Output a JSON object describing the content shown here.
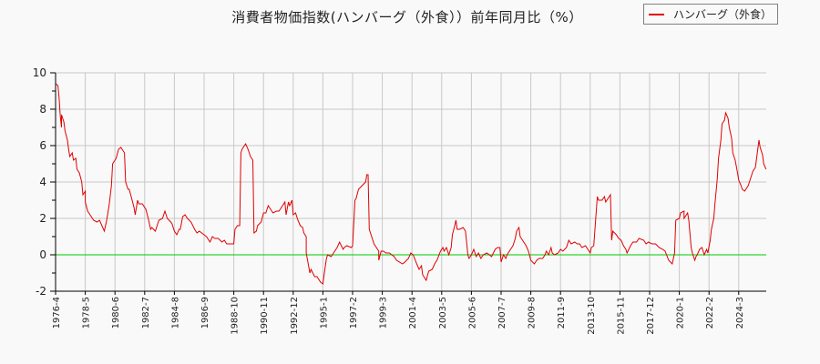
{
  "chart_data": {
    "type": "line",
    "title": "消費者物価指数(ハンバーグ（外食））前年同月比（%）",
    "xlabel": "",
    "ylabel": "",
    "ylim": [
      -2,
      10
    ],
    "yticks": [
      -2,
      0,
      2,
      4,
      6,
      8,
      10
    ],
    "grid": true,
    "legend_position": "top-right",
    "x_start": "1976-4",
    "x_step": "month",
    "x_tick_labels": [
      "1976-4",
      "1978-5",
      "1980-6",
      "1982-7",
      "1984-8",
      "1986-9",
      "1988-10",
      "1990-11",
      "1992-12",
      "1995-1",
      "1997-2",
      "1999-3",
      "2001-4",
      "2003-5",
      "2005-6",
      "2007-7",
      "2009-8",
      "2011-9",
      "2013-10",
      "2015-11",
      "2017-12",
      "2020-1",
      "2022-2",
      "2024-3"
    ],
    "x_tick_interval_months": 25,
    "reference_line": {
      "value": 0,
      "color": "#00cc00"
    },
    "series": [
      {
        "name": "ハンバーグ（外食）",
        "color": "#e00000",
        "points_month_index_value": [
          [
            0,
            9.4
          ],
          [
            2,
            9.3
          ],
          [
            3,
            8.6
          ],
          [
            4,
            7.6
          ],
          [
            5,
            7.0
          ],
          [
            5,
            7.7
          ],
          [
            7,
            7.3
          ],
          [
            8,
            6.8
          ],
          [
            10,
            6.3
          ],
          [
            11,
            5.8
          ],
          [
            12,
            5.4
          ],
          [
            14,
            5.6
          ],
          [
            15,
            5.2
          ],
          [
            17,
            5.3
          ],
          [
            18,
            4.7
          ],
          [
            20,
            4.5
          ],
          [
            22,
            4.0
          ],
          [
            23,
            3.3
          ],
          [
            25,
            3.5
          ],
          [
            25,
            2.9
          ],
          [
            27,
            2.4
          ],
          [
            29,
            2.2
          ],
          [
            32,
            1.9
          ],
          [
            35,
            1.8
          ],
          [
            37,
            1.9
          ],
          [
            41,
            1.3
          ],
          [
            43,
            1.9
          ],
          [
            45,
            2.7
          ],
          [
            47,
            3.8
          ],
          [
            48,
            5.0
          ],
          [
            51,
            5.3
          ],
          [
            53,
            5.8
          ],
          [
            55,
            5.9
          ],
          [
            58,
            5.6
          ],
          [
            59,
            4.0
          ],
          [
            61,
            3.6
          ],
          [
            62,
            3.6
          ],
          [
            64,
            3.1
          ],
          [
            66,
            2.6
          ],
          [
            67,
            2.2
          ],
          [
            69,
            3.0
          ],
          [
            70,
            2.8
          ],
          [
            73,
            2.8
          ],
          [
            76,
            2.5
          ],
          [
            78,
            2.0
          ],
          [
            80,
            1.4
          ],
          [
            81,
            1.5
          ],
          [
            84,
            1.3
          ],
          [
            85,
            1.5
          ],
          [
            87,
            1.9
          ],
          [
            90,
            2.0
          ],
          [
            92,
            2.4
          ],
          [
            94,
            2.0
          ],
          [
            97,
            1.8
          ],
          [
            98,
            1.7
          ],
          [
            100,
            1.3
          ],
          [
            102,
            1.1
          ],
          [
            104,
            1.4
          ],
          [
            105,
            1.4
          ],
          [
            107,
            2.1
          ],
          [
            109,
            2.2
          ],
          [
            111,
            2.0
          ],
          [
            114,
            1.8
          ],
          [
            117,
            1.4
          ],
          [
            119,
            1.2
          ],
          [
            121,
            1.3
          ],
          [
            123,
            1.2
          ],
          [
            127,
            1.0
          ],
          [
            129,
            0.8
          ],
          [
            130,
            0.7
          ],
          [
            132,
            1.0
          ],
          [
            134,
            0.9
          ],
          [
            137,
            0.9
          ],
          [
            140,
            0.7
          ],
          [
            142,
            0.8
          ],
          [
            144,
            0.6
          ],
          [
            147,
            0.6
          ],
          [
            150,
            0.6
          ],
          [
            151,
            1.4
          ],
          [
            153,
            1.6
          ],
          [
            155,
            1.6
          ],
          [
            156,
            5.6
          ],
          [
            157,
            5.8
          ],
          [
            159,
            6.0
          ],
          [
            160,
            6.1
          ],
          [
            162,
            5.8
          ],
          [
            164,
            5.4
          ],
          [
            166,
            5.2
          ],
          [
            167,
            1.2
          ],
          [
            169,
            1.3
          ],
          [
            170,
            1.6
          ],
          [
            173,
            1.8
          ],
          [
            175,
            2.3
          ],
          [
            177,
            2.3
          ],
          [
            179,
            2.7
          ],
          [
            182,
            2.4
          ],
          [
            183,
            2.3
          ],
          [
            186,
            2.4
          ],
          [
            188,
            2.4
          ],
          [
            190,
            2.6
          ],
          [
            193,
            2.9
          ],
          [
            194,
            2.2
          ],
          [
            196,
            2.9
          ],
          [
            197,
            2.7
          ],
          [
            199,
            3.0
          ],
          [
            200,
            2.2
          ],
          [
            202,
            2.3
          ],
          [
            204,
            1.9
          ],
          [
            206,
            1.6
          ],
          [
            208,
            1.5
          ],
          [
            209,
            1.2
          ],
          [
            211,
            1.0
          ],
          [
            211,
            0.1
          ],
          [
            214,
            -1.0
          ],
          [
            215,
            -0.8
          ],
          [
            218,
            -1.2
          ],
          [
            220,
            -1.2
          ],
          [
            223,
            -1.5
          ],
          [
            225,
            -1.6
          ],
          [
            226,
            -1.1
          ],
          [
            228,
            -0.2
          ],
          [
            229,
            0.0
          ],
          [
            232,
            -0.1
          ],
          [
            234,
            0.1
          ],
          [
            237,
            0.4
          ],
          [
            239,
            0.7
          ],
          [
            242,
            0.3
          ],
          [
            243,
            0.4
          ],
          [
            245,
            0.5
          ],
          [
            249,
            0.4
          ],
          [
            250,
            0.5
          ],
          [
            252,
            3.0
          ],
          [
            253,
            3.1
          ],
          [
            255,
            3.6
          ],
          [
            258,
            3.8
          ],
          [
            261,
            4.0
          ],
          [
            262,
            4.4
          ],
          [
            263,
            4.4
          ],
          [
            264,
            1.4
          ],
          [
            266,
            1.0
          ],
          [
            268,
            0.6
          ],
          [
            270,
            0.4
          ],
          [
            272,
            0.2
          ],
          [
            272,
            -0.3
          ],
          [
            274,
            0.2
          ],
          [
            276,
            0.2
          ],
          [
            278,
            0.1
          ],
          [
            281,
            0.1
          ],
          [
            283,
            0.0
          ],
          [
            285,
            -0.1
          ],
          [
            287,
            -0.3
          ],
          [
            292,
            -0.5
          ],
          [
            294,
            -0.4
          ],
          [
            297,
            -0.2
          ],
          [
            299,
            0.1
          ],
          [
            301,
            0.0
          ],
          [
            304,
            -0.5
          ],
          [
            306,
            -0.8
          ],
          [
            308,
            -0.6
          ],
          [
            309,
            -1.1
          ],
          [
            311,
            -1.3
          ],
          [
            312,
            -1.4
          ],
          [
            314,
            -0.9
          ],
          [
            317,
            -0.8
          ],
          [
            319,
            -0.5
          ],
          [
            321,
            -0.3
          ],
          [
            324,
            0.2
          ],
          [
            326,
            0.4
          ],
          [
            327,
            0.2
          ],
          [
            329,
            0.4
          ],
          [
            331,
            0.0
          ],
          [
            333,
            0.4
          ],
          [
            334,
            1.1
          ],
          [
            336,
            1.6
          ],
          [
            337,
            1.9
          ],
          [
            338,
            1.4
          ],
          [
            340,
            1.4
          ],
          [
            343,
            1.5
          ],
          [
            345,
            1.3
          ],
          [
            347,
            0.0
          ],
          [
            348,
            -0.2
          ],
          [
            350,
            0.0
          ],
          [
            352,
            0.3
          ],
          [
            354,
            -0.1
          ],
          [
            356,
            0.1
          ],
          [
            358,
            -0.2
          ],
          [
            360,
            0.0
          ],
          [
            363,
            0.1
          ],
          [
            365,
            0.0
          ],
          [
            367,
            -0.1
          ],
          [
            370,
            0.3
          ],
          [
            372,
            0.4
          ],
          [
            374,
            0.4
          ],
          [
            375,
            -0.4
          ],
          [
            377,
            0.0
          ],
          [
            379,
            -0.2
          ],
          [
            380,
            0.0
          ],
          [
            383,
            0.3
          ],
          [
            385,
            0.5
          ],
          [
            387,
            0.9
          ],
          [
            388,
            1.3
          ],
          [
            390,
            1.5
          ],
          [
            391,
            1.0
          ],
          [
            393,
            0.8
          ],
          [
            396,
            0.5
          ],
          [
            398,
            0.2
          ],
          [
            400,
            -0.3
          ],
          [
            403,
            -0.5
          ],
          [
            405,
            -0.3
          ],
          [
            407,
            -0.2
          ],
          [
            410,
            -0.2
          ],
          [
            412,
            0.0
          ],
          [
            413,
            0.2
          ],
          [
            415,
            0.0
          ],
          [
            417,
            0.4
          ],
          [
            418,
            0.1
          ],
          [
            420,
            0.0
          ],
          [
            423,
            0.1
          ],
          [
            425,
            0.3
          ],
          [
            427,
            0.2
          ],
          [
            430,
            0.4
          ],
          [
            432,
            0.8
          ],
          [
            434,
            0.6
          ],
          [
            437,
            0.7
          ],
          [
            439,
            0.6
          ],
          [
            441,
            0.6
          ],
          [
            443,
            0.4
          ],
          [
            446,
            0.5
          ],
          [
            450,
            0.1
          ],
          [
            451,
            0.4
          ],
          [
            453,
            0.5
          ],
          [
            456,
            3.2
          ],
          [
            457,
            3.0
          ],
          [
            460,
            3.0
          ],
          [
            462,
            3.2
          ],
          [
            463,
            2.9
          ],
          [
            465,
            3.1
          ],
          [
            467,
            3.3
          ],
          [
            468,
            0.8
          ],
          [
            469,
            1.3
          ],
          [
            472,
            1.1
          ],
          [
            474,
            0.9
          ],
          [
            476,
            0.8
          ],
          [
            478,
            0.5
          ],
          [
            480,
            0.3
          ],
          [
            481,
            0.1
          ],
          [
            484,
            0.5
          ],
          [
            486,
            0.7
          ],
          [
            489,
            0.7
          ],
          [
            491,
            0.9
          ],
          [
            495,
            0.8
          ],
          [
            497,
            0.6
          ],
          [
            499,
            0.7
          ],
          [
            502,
            0.6
          ],
          [
            505,
            0.6
          ],
          [
            508,
            0.4
          ],
          [
            511,
            0.3
          ],
          [
            513,
            0.2
          ],
          [
            516,
            -0.3
          ],
          [
            519,
            -0.5
          ],
          [
            521,
            0.1
          ],
          [
            522,
            1.9
          ],
          [
            525,
            2.0
          ],
          [
            526,
            2.3
          ],
          [
            529,
            2.4
          ],
          [
            529,
            2.0
          ],
          [
            532,
            2.3
          ],
          [
            533,
            1.9
          ],
          [
            535,
            0.4
          ],
          [
            536,
            0.1
          ],
          [
            538,
            -0.3
          ],
          [
            539,
            -0.1
          ],
          [
            540,
            0.0
          ],
          [
            542,
            0.3
          ],
          [
            544,
            0.4
          ],
          [
            546,
            0.0
          ],
          [
            548,
            0.3
          ],
          [
            549,
            0.1
          ],
          [
            551,
            0.8
          ],
          [
            552,
            1.4
          ],
          [
            554,
            2.0
          ],
          [
            555,
            2.8
          ],
          [
            557,
            4.2
          ],
          [
            558,
            5.3
          ],
          [
            560,
            6.3
          ],
          [
            561,
            7.2
          ],
          [
            563,
            7.4
          ],
          [
            564,
            7.8
          ],
          [
            566,
            7.5
          ],
          [
            567,
            7.0
          ],
          [
            569,
            6.4
          ],
          [
            570,
            5.6
          ],
          [
            572,
            5.2
          ],
          [
            574,
            4.5
          ],
          [
            575,
            4.1
          ],
          [
            577,
            3.8
          ],
          [
            578,
            3.6
          ],
          [
            580,
            3.5
          ],
          [
            581,
            3.6
          ],
          [
            583,
            3.8
          ],
          [
            584,
            4.0
          ],
          [
            586,
            4.4
          ],
          [
            587,
            4.6
          ],
          [
            589,
            4.8
          ],
          [
            590,
            5.3
          ],
          [
            592,
            6.3
          ],
          [
            593,
            5.9
          ],
          [
            595,
            5.5
          ],
          [
            596,
            5.0
          ],
          [
            598,
            4.7
          ]
        ]
      }
    ]
  },
  "legend": {
    "label": "ハンバーグ（外食）"
  }
}
